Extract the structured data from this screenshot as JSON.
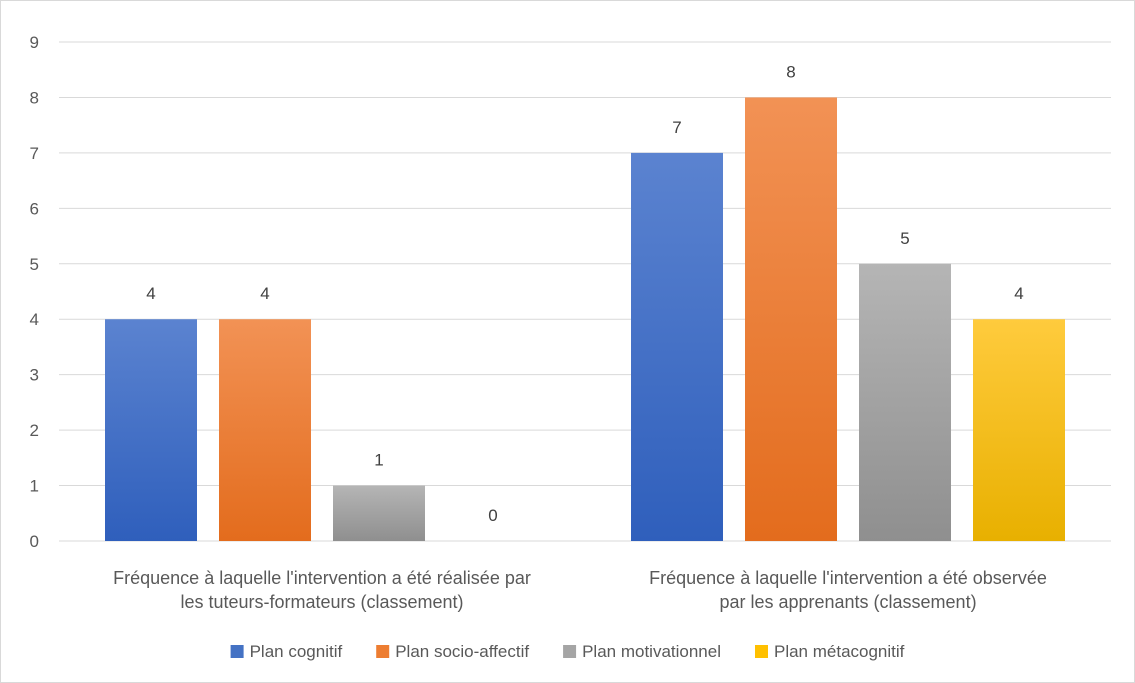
{
  "chart_data": {
    "type": "bar",
    "categories": [
      [
        "Fréquence à laquelle l'intervention a été réalisée par",
        "les tuteurs-formateurs (classement)"
      ],
      [
        "Fréquence à laquelle l'intervention a été observée",
        "par les apprenants (classement)"
      ]
    ],
    "series": [
      {
        "name": "Plan cognitif",
        "values": [
          4,
          7
        ],
        "color": "#4472c4",
        "color_top": "#5b83d0",
        "color_bottom": "#2f5fbc"
      },
      {
        "name": "Plan socio-affectif",
        "values": [
          4,
          8
        ],
        "color": "#ed7d31",
        "color_top": "#f29255",
        "color_bottom": "#e36c1d"
      },
      {
        "name": "Plan motivationnel",
        "values": [
          1,
          5
        ],
        "color": "#a5a5a5",
        "color_top": "#b5b5b5",
        "color_bottom": "#8f8f8f"
      },
      {
        "name": "Plan métacognitif",
        "values": [
          0,
          4
        ],
        "color": "#ffc000",
        "color_top": "#ffcb3d",
        "color_bottom": "#e8b000"
      }
    ],
    "ylim": [
      0,
      9
    ],
    "yticks": [
      0,
      1,
      2,
      3,
      4,
      5,
      6,
      7,
      8,
      9
    ],
    "grid": true,
    "legend_position": "bottom",
    "data_labels": true
  }
}
